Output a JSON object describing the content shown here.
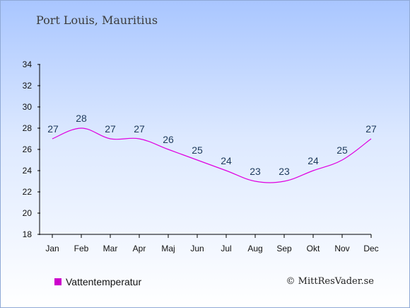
{
  "header": {
    "location": "Port Louis, Mauritius"
  },
  "chart_data": {
    "type": "line",
    "categories": [
      "Jan",
      "Feb",
      "Mar",
      "Apr",
      "Maj",
      "Jun",
      "Jul",
      "Aug",
      "Sep",
      "Okt",
      "Nov",
      "Dec"
    ],
    "series": [
      {
        "name": "Vattentemperatur",
        "values": [
          27,
          28,
          27,
          27,
          26,
          25,
          24,
          23,
          23,
          24,
          25,
          27
        ],
        "color": "#e000e0"
      }
    ],
    "ylim": [
      18,
      34
    ],
    "yticks": [
      18,
      20,
      22,
      24,
      26,
      28,
      30,
      32,
      34
    ],
    "grid": false,
    "legend_position": "bottom-left"
  },
  "legend": {
    "label": "Vattentemperatur",
    "color": "#cc00cc"
  },
  "footer": {
    "credit": "© MittResVader.se"
  }
}
